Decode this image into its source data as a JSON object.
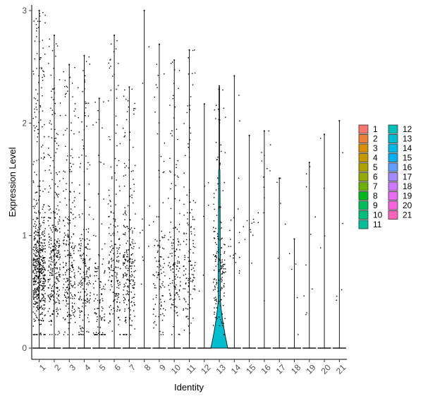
{
  "chart_data": {
    "type": "violin",
    "title": "",
    "xlabel": "Identity",
    "ylabel": "Expression Level",
    "ylim": [
      -0.1,
      3.05
    ],
    "yticks": [
      0,
      1,
      2,
      3
    ],
    "grid": false,
    "legend_position": "right",
    "categories": [
      "1",
      "2",
      "3",
      "4",
      "5",
      "6",
      "7",
      "8",
      "9",
      "10",
      "11",
      "12",
      "13",
      "14",
      "15",
      "16",
      "17",
      "18",
      "19",
      "20",
      "21"
    ],
    "legend": {
      "column_1": [
        "1",
        "2",
        "3",
        "4",
        "5",
        "6",
        "7",
        "8",
        "9",
        "10",
        "11"
      ],
      "column_2": [
        "12",
        "13",
        "14",
        "15",
        "16",
        "17",
        "18",
        "19",
        "20",
        "21"
      ]
    },
    "colors": {
      "1": "#F8766D",
      "2": "#EC8239",
      "3": "#DB8E00",
      "4": "#C79800",
      "5": "#AFA100",
      "6": "#93AA00",
      "7": "#6BB100",
      "8": "#00B81B",
      "9": "#00BC59",
      "10": "#00BF7D",
      "11": "#00C19C",
      "12": "#00C1B7",
      "13": "#00BDD0",
      "14": "#00B8E5",
      "15": "#00AEF8",
      "16": "#619CFF",
      "17": "#A58AFF",
      "18": "#CF78FF",
      "19": "#E86BF4",
      "20": "#F863DE",
      "21": "#FF62BC"
    },
    "series": [
      {
        "cluster": "1",
        "max_expression": 3.0,
        "nonzero_cells": 560,
        "dense_center": 0.7
      },
      {
        "cluster": "2",
        "max_expression": 2.78,
        "nonzero_cells": 320,
        "dense_center": 0.75
      },
      {
        "cluster": "3",
        "max_expression": 2.52,
        "nonzero_cells": 240,
        "dense_center": 0.65
      },
      {
        "cluster": "4",
        "max_expression": 2.6,
        "nonzero_cells": 200,
        "dense_center": 0.6
      },
      {
        "cluster": "5",
        "max_expression": 2.22,
        "nonzero_cells": 110,
        "dense_center": 0.35
      },
      {
        "cluster": "6",
        "max_expression": 2.78,
        "nonzero_cells": 180,
        "dense_center": 0.7
      },
      {
        "cluster": "7",
        "max_expression": 2.32,
        "nonzero_cells": 230,
        "dense_center": 0.65
      },
      {
        "cluster": "8",
        "max_expression": 3.0,
        "nonzero_cells": 12,
        "dense_center": 1.2
      },
      {
        "cluster": "9",
        "max_expression": 2.7,
        "nonzero_cells": 110,
        "dense_center": 0.55
      },
      {
        "cluster": "10",
        "max_expression": 2.56,
        "nonzero_cells": 140,
        "dense_center": 0.6
      },
      {
        "cluster": "11",
        "max_expression": 2.65,
        "nonzero_cells": 130,
        "dense_center": 0.75
      },
      {
        "cluster": "12",
        "max_expression": 2.17,
        "nonzero_cells": 6,
        "dense_center": 1.3
      },
      {
        "cluster": "13",
        "max_expression": 2.33,
        "nonzero_cells": 170,
        "dense_center": 0.7
      },
      {
        "cluster": "14",
        "max_expression": 2.42,
        "nonzero_cells": 20,
        "dense_center": 0.9
      },
      {
        "cluster": "15",
        "max_expression": 1.89,
        "nonzero_cells": 10,
        "dense_center": 1.0
      },
      {
        "cluster": "16",
        "max_expression": 1.93,
        "nonzero_cells": 14,
        "dense_center": 1.6
      },
      {
        "cluster": "17",
        "max_expression": 1.51,
        "nonzero_cells": 5,
        "dense_center": 1.1
      },
      {
        "cluster": "18",
        "max_expression": 0.97,
        "nonzero_cells": 5,
        "dense_center": 0.5
      },
      {
        "cluster": "19",
        "max_expression": 1.65,
        "nonzero_cells": 10,
        "dense_center": 0.7
      },
      {
        "cluster": "20",
        "max_expression": 1.9,
        "nonzero_cells": 4,
        "dense_center": 1.2
      },
      {
        "cluster": "21",
        "max_expression": 2.02,
        "nonzero_cells": 5,
        "dense_center": 0.9
      }
    ]
  }
}
